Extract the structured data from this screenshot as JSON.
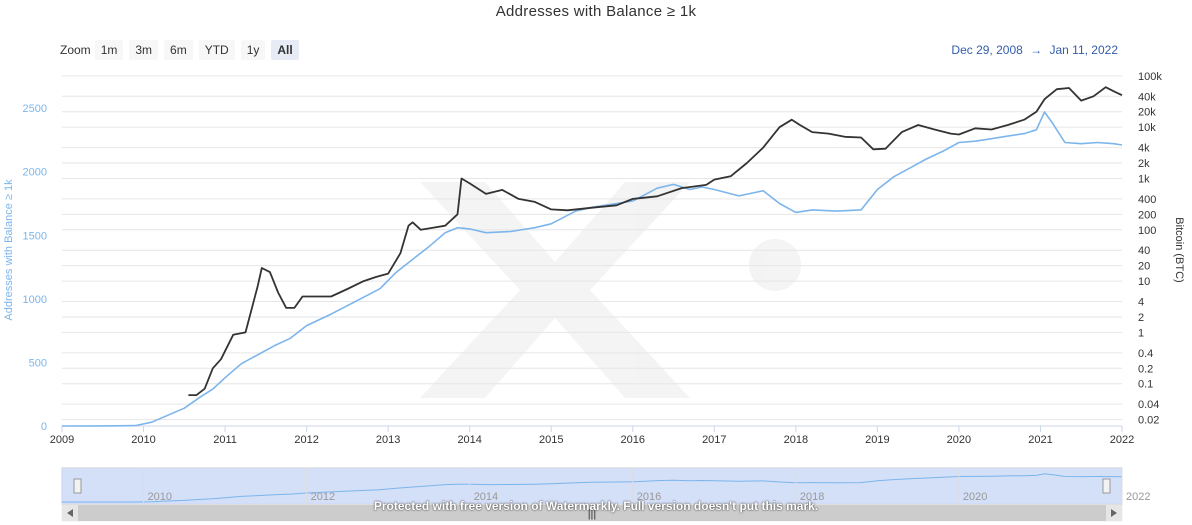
{
  "title": "Addresses with Balance ≥ 1k",
  "zoom": {
    "label": "Zoom",
    "buttons": [
      "1m",
      "3m",
      "6m",
      "YTD",
      "1y",
      "All"
    ],
    "active": "All"
  },
  "range": {
    "from": "Dec 29, 2008",
    "arrow": "→",
    "to": "Jan 11, 2022"
  },
  "watermark_notice": "Protected with free version of Watermarkly. Full version doesn't put this mark.",
  "navigator": {
    "years": [
      "2010",
      "2012",
      "2014",
      "2016",
      "2018",
      "2020",
      "2022"
    ],
    "handle_glyph": "|||"
  },
  "colors": {
    "addresses": "#7cb5ec",
    "bitcoin": "#333333",
    "left_axis": "#7cb5ec",
    "grid": "#e6e6e6",
    "navigator_fill": "#cfdcf7"
  },
  "chart_data": {
    "type": "line",
    "title": "Addresses with Balance ≥ 1k",
    "x_ticks": [
      "2009",
      "2010",
      "2011",
      "2012",
      "2013",
      "2014",
      "2015",
      "2016",
      "2017",
      "2018",
      "2019",
      "2020",
      "2021",
      "2022"
    ],
    "x_range": [
      2009.0,
      2022.0
    ],
    "y_left": {
      "label": "Addresses with Balance ≥ 1k",
      "ticks": [
        "0",
        "500",
        "1000",
        "1500",
        "2000",
        "2500"
      ],
      "range": [
        0,
        2800
      ]
    },
    "y_right": {
      "label": "Bitcoin (BTC)",
      "scale": "log",
      "ticks": [
        "0.02",
        "0.04",
        "0.1",
        "0.2",
        "0.4",
        "1",
        "2",
        "4",
        "10",
        "20",
        "40",
        "100",
        "200",
        "400",
        "1k",
        "2k",
        "4k",
        "10k",
        "20k",
        "40k",
        "100k"
      ],
      "tick_values": [
        0.02,
        0.04,
        0.1,
        0.2,
        0.4,
        1,
        2,
        4,
        10,
        20,
        40,
        100,
        200,
        400,
        1000,
        2000,
        4000,
        10000,
        20000,
        40000,
        100000
      ],
      "range": [
        0.015,
        130000
      ]
    },
    "series": [
      {
        "name": "Addresses with Balance ≥ 1k",
        "axis": "left",
        "x": [
          2009.0,
          2009.5,
          2009.9,
          2010.1,
          2010.3,
          2010.5,
          2010.7,
          2010.85,
          2011.0,
          2011.2,
          2011.4,
          2011.6,
          2011.8,
          2012.0,
          2012.3,
          2012.6,
          2012.9,
          2013.1,
          2013.3,
          2013.5,
          2013.7,
          2013.85,
          2014.0,
          2014.2,
          2014.5,
          2014.8,
          2015.0,
          2015.3,
          2015.5,
          2015.8,
          2016.0,
          2016.3,
          2016.5,
          2016.7,
          2016.85,
          2017.0,
          2017.3,
          2017.6,
          2017.8,
          2018.0,
          2018.2,
          2018.5,
          2018.8,
          2019.0,
          2019.2,
          2019.4,
          2019.6,
          2019.8,
          2020.0,
          2020.2,
          2020.4,
          2020.6,
          2020.8,
          2020.95,
          2021.05,
          2021.15,
          2021.3,
          2021.5,
          2021.7,
          2021.9,
          2022.0
        ],
        "y": [
          0,
          1,
          3,
          30,
          85,
          140,
          230,
          290,
          380,
          490,
          560,
          630,
          690,
          790,
          880,
          980,
          1080,
          1210,
          1310,
          1410,
          1520,
          1560,
          1550,
          1520,
          1530,
          1560,
          1590,
          1690,
          1720,
          1750,
          1770,
          1870,
          1900,
          1860,
          1880,
          1860,
          1810,
          1850,
          1750,
          1680,
          1700,
          1690,
          1700,
          1860,
          1960,
          2030,
          2100,
          2160,
          2230,
          2240,
          2260,
          2280,
          2300,
          2330,
          2470,
          2380,
          2230,
          2220,
          2230,
          2220,
          2210
        ]
      },
      {
        "name": "Bitcoin (BTC)",
        "axis": "right",
        "x": [
          2010.55,
          2010.65,
          2010.75,
          2010.85,
          2010.95,
          2011.1,
          2011.25,
          2011.4,
          2011.45,
          2011.55,
          2011.65,
          2011.75,
          2011.85,
          2011.95,
          2012.1,
          2012.3,
          2012.5,
          2012.7,
          2012.85,
          2013.0,
          2013.15,
          2013.25,
          2013.3,
          2013.4,
          2013.55,
          2013.7,
          2013.85,
          2013.9,
          2014.0,
          2014.2,
          2014.4,
          2014.6,
          2014.8,
          2015.0,
          2015.2,
          2015.5,
          2015.8,
          2016.0,
          2016.3,
          2016.6,
          2016.9,
          2017.0,
          2017.2,
          2017.4,
          2017.6,
          2017.8,
          2017.95,
          2018.05,
          2018.2,
          2018.4,
          2018.6,
          2018.8,
          2018.95,
          2019.1,
          2019.3,
          2019.5,
          2019.7,
          2019.9,
          2020.0,
          2020.2,
          2020.4,
          2020.6,
          2020.8,
          2020.95,
          2021.05,
          2021.2,
          2021.35,
          2021.5,
          2021.65,
          2021.8,
          2021.9,
          2022.0
        ],
        "y": [
          0.06,
          0.06,
          0.08,
          0.2,
          0.3,
          0.9,
          1.0,
          8,
          18,
          15,
          6,
          3,
          3,
          5,
          5,
          5,
          7,
          10,
          12,
          14,
          35,
          120,
          140,
          100,
          110,
          120,
          200,
          1000,
          800,
          500,
          600,
          400,
          350,
          250,
          240,
          270,
          300,
          400,
          450,
          650,
          750,
          950,
          1100,
          2000,
          4000,
          10000,
          14000,
          11000,
          8000,
          7500,
          6500,
          6300,
          3700,
          3800,
          8000,
          11000,
          9000,
          7500,
          7200,
          9500,
          9000,
          11000,
          14000,
          20000,
          35000,
          55000,
          58000,
          33000,
          40000,
          60000,
          50000,
          42000
        ]
      }
    ],
    "annotations": [
      "Protected with free version of Watermarkly. Full version doesn't put this mark."
    ]
  }
}
